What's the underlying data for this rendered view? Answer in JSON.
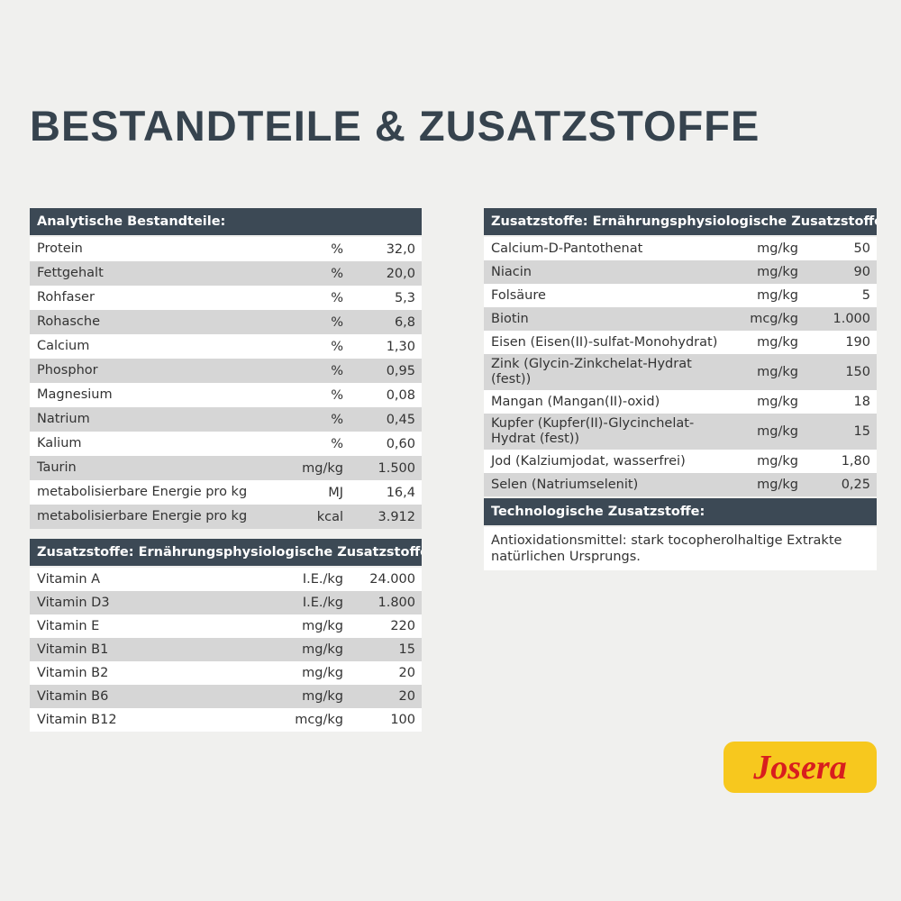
{
  "title": "Bestandteile & Zusatzstoffe",
  "tables": [
    {
      "header": "Analytische Bestandteile:",
      "rows": [
        [
          "Protein",
          "%",
          "32,0"
        ],
        [
          "Fettgehalt",
          "%",
          "20,0"
        ],
        [
          "Rohfaser",
          "%",
          "5,3"
        ],
        [
          "Rohasche",
          "%",
          "6,8"
        ],
        [
          "Calcium",
          "%",
          "1,30"
        ],
        [
          "Phosphor",
          "%",
          "0,95"
        ],
        [
          "Magnesium",
          "%",
          "0,08"
        ],
        [
          "Natrium",
          "%",
          "0,45"
        ],
        [
          "Kalium",
          "%",
          "0,60"
        ],
        [
          "Taurin",
          "mg/kg",
          "1.500"
        ],
        [
          "metabolisierbare Energie pro kg",
          "MJ",
          "16,4"
        ],
        [
          "metabolisierbare Energie pro kg",
          "kcal",
          "3.912"
        ]
      ]
    },
    {
      "header": "Zusatzstoffe: Ernährungsphysiologische Zusatzstoffe je kg:",
      "rows": [
        [
          "Vitamin A",
          "I.E./kg",
          "24.000"
        ],
        [
          "Vitamin D3",
          "I.E./kg",
          "1.800"
        ],
        [
          "Vitamin E",
          "mg/kg",
          "220"
        ],
        [
          "Vitamin B1",
          "mg/kg",
          "15"
        ],
        [
          "Vitamin B2",
          "mg/kg",
          "20"
        ],
        [
          "Vitamin B6",
          "mg/kg",
          "20"
        ],
        [
          "Vitamin B12",
          "mcg/kg",
          "100"
        ]
      ]
    },
    {
      "header": "Zusatzstoffe: Ernährungsphysiologische Zusatzstoffe je kg:",
      "rows": [
        [
          "Calcium-D-Pantothenat",
          "mg/kg",
          "50"
        ],
        [
          "Niacin",
          "mg/kg",
          "90"
        ],
        [
          "Folsäure",
          "mg/kg",
          "5"
        ],
        [
          "Biotin",
          "mcg/kg",
          "1.000"
        ],
        [
          "Eisen (Eisen(II)-sulfat-Monohydrat)",
          "mg/kg",
          "190"
        ],
        [
          "Zink (Glycin-Zinkchelat-Hydrat (fest))",
          "mg/kg",
          "150"
        ],
        [
          "Mangan (Mangan(II)-oxid)",
          "mg/kg",
          "18"
        ],
        [
          "Kupfer (Kupfer(II)-Glycinchelat-Hydrat (fest))",
          "mg/kg",
          "15"
        ],
        [
          "Jod (Kalziumjodat, wasserfrei)",
          "mg/kg",
          "1,80"
        ],
        [
          "Selen (Natriumselenit)",
          "mg/kg",
          "0,25"
        ]
      ]
    }
  ],
  "technological": {
    "header": "Technologische Zusatzstoffe:",
    "text": "Antioxidationsmittel: stark tocopherolhaltige Extrakte natürlichen Ursprungs."
  },
  "logo": "Josera"
}
